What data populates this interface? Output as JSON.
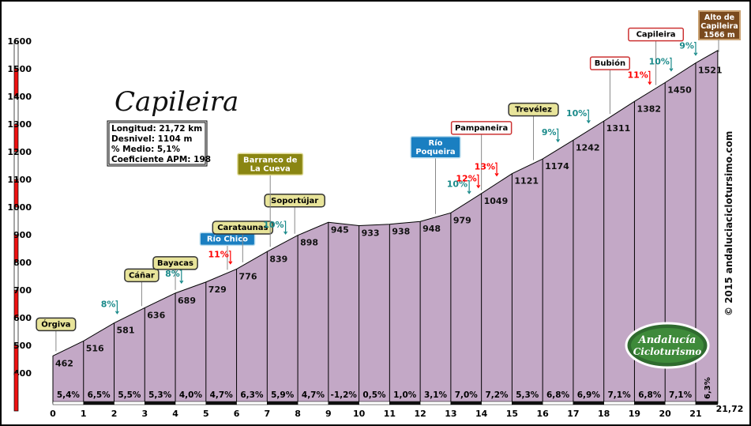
{
  "chart_data": {
    "type": "area",
    "title": "Capileira",
    "stats": [
      "Longitud: 21,72 km",
      "Desnivel: 1104 m",
      "% Medio: 5,1%",
      "Coeficiente APM: 198"
    ],
    "summit": [
      "Alto de",
      "Capileira",
      "1566 m"
    ],
    "x": [
      0,
      1,
      2,
      3,
      4,
      5,
      6,
      7,
      8,
      9,
      10,
      11,
      12,
      13,
      14,
      15,
      16,
      17,
      18,
      19,
      20,
      21,
      21.72
    ],
    "elevation": [
      462,
      516,
      581,
      636,
      689,
      729,
      776,
      839,
      898,
      945,
      933,
      938,
      948,
      979,
      1049,
      1121,
      1174,
      1242,
      1311,
      1382,
      1450,
      1521,
      1566
    ],
    "elevation_labels": [
      "462",
      "516",
      "581",
      "636",
      "689",
      "729",
      "776",
      "839",
      "898",
      "945",
      "933",
      "938",
      "948",
      "979",
      "1049",
      "1121",
      "1174",
      "1242",
      "1311",
      "1382",
      "1450",
      "1521"
    ],
    "segment_gradients": [
      "5,4%",
      "6,5%",
      "5,5%",
      "5,3%",
      "4,0%",
      "4,7%",
      "6,3%",
      "5,9%",
      "4,7%",
      "-1,2%",
      "0,5%",
      "1,0%",
      "3,1%",
      "7,0%",
      "7,2%",
      "5,3%",
      "6,8%",
      "6,9%",
      "7,1%",
      "6,8%",
      "7,1%",
      "6,3%"
    ],
    "x_ticks": [
      "0",
      "1",
      "2",
      "3",
      "4",
      "5",
      "6",
      "7",
      "8",
      "9",
      "10",
      "11",
      "12",
      "13",
      "14",
      "15",
      "16",
      "17",
      "18",
      "19",
      "20",
      "21",
      "21,72"
    ],
    "y_ticks": [
      "400",
      "500",
      "600",
      "700",
      "800",
      "900",
      "1000",
      "1100",
      "1200",
      "1300",
      "1400",
      "1500",
      "1600"
    ],
    "ylim": [
      400,
      1600
    ],
    "xlim": [
      0,
      21.72
    ],
    "fill_color": "#c3a8c6",
    "places": [
      {
        "label": "Órgiva",
        "km": 0.1,
        "style": "yellow"
      },
      {
        "label": "Cáñar",
        "km": 2.9,
        "style": "yellow"
      },
      {
        "label": "Bayacas",
        "km": 4.0,
        "style": "yellow"
      },
      {
        "label": "Río Chico",
        "km": 5.7,
        "style": "blue"
      },
      {
        "label": "Carataunas",
        "km": 6.2,
        "style": "yellow"
      },
      {
        "label": "Soportújar",
        "km": 7.9,
        "style": "yellow"
      },
      {
        "label": "Barranco de La Cueva",
        "km": 7.1,
        "style": "olive"
      },
      {
        "label": "Río Poqueira",
        "km": 12.5,
        "style": "blue"
      },
      {
        "label": "Pampaneira",
        "km": 14.0,
        "style": "white"
      },
      {
        "label": "Trevélez",
        "km": 15.7,
        "style": "yellow"
      },
      {
        "label": "Bubión",
        "km": 18.2,
        "style": "white"
      },
      {
        "label": "Capileira",
        "km": 19.7,
        "style": "white"
      }
    ],
    "gradient_callouts": [
      {
        "text": "8%",
        "km": 2.1,
        "color": "#1a8a8a"
      },
      {
        "text": "8%",
        "km": 4.2,
        "color": "#1a8a8a"
      },
      {
        "text": "11%",
        "km": 5.8,
        "color": "#ff0000"
      },
      {
        "text": "10%",
        "km": 7.6,
        "color": "#1a8a8a"
      },
      {
        "text": "10%",
        "km": 13.6,
        "color": "#1a8a8a"
      },
      {
        "text": "12%",
        "km": 13.9,
        "color": "#ff0000"
      },
      {
        "text": "13%",
        "km": 14.5,
        "color": "#ff0000"
      },
      {
        "text": "9%",
        "km": 16.5,
        "color": "#1a8a8a"
      },
      {
        "text": "10%",
        "km": 17.5,
        "color": "#1a8a8a"
      },
      {
        "text": "11%",
        "km": 19.5,
        "color": "#ff0000"
      },
      {
        "text": "10%",
        "km": 20.2,
        "color": "#1a8a8a"
      },
      {
        "text": "9%",
        "km": 21.0,
        "color": "#1a8a8a"
      }
    ]
  },
  "copyright": "© 2015 andaluciaciclotursimo.com",
  "logo": [
    "Andalucía",
    "Cicloturismo"
  ]
}
